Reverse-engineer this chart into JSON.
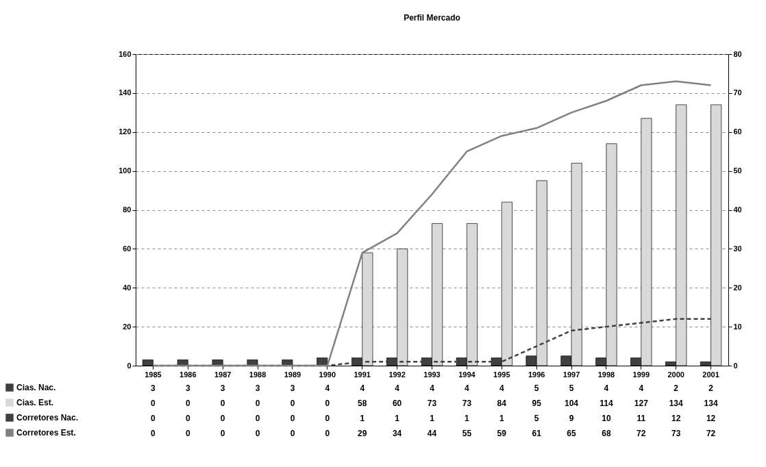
{
  "chart_data": {
    "type": "bar",
    "title": "Perfil Mercado",
    "categories": [
      "1985",
      "1986",
      "1987",
      "1988",
      "1989",
      "1990",
      "1991",
      "1992",
      "1993",
      "1994",
      "1995",
      "1996",
      "1997",
      "1998",
      "1999",
      "2000",
      "2001"
    ],
    "series": [
      {
        "name": "Cias. Nac.",
        "type": "bar",
        "color": "#404040",
        "values": [
          3,
          3,
          3,
          3,
          3,
          4,
          4,
          4,
          4,
          4,
          4,
          5,
          5,
          4,
          4,
          2,
          2
        ]
      },
      {
        "name": "Cias. Est.",
        "type": "bar",
        "color": "#d9d9d9",
        "values": [
          0,
          0,
          0,
          0,
          0,
          0,
          58,
          60,
          73,
          73,
          84,
          95,
          104,
          114,
          127,
          134,
          134
        ]
      },
      {
        "name": "Corretores Nac.",
        "type": "line",
        "axis": "y2",
        "line_style": "dashed",
        "color": "#404040",
        "values": [
          0,
          0,
          0,
          0,
          0,
          0,
          1,
          1,
          1,
          1,
          1,
          5,
          9,
          10,
          11,
          12,
          12
        ]
      },
      {
        "name": "Corretores Est.",
        "type": "line",
        "axis": "y2",
        "line_style": "solid",
        "color": "#808080",
        "values": [
          0,
          0,
          0,
          0,
          0,
          0,
          29,
          34,
          44,
          55,
          59,
          61,
          65,
          68,
          72,
          73,
          72
        ]
      }
    ],
    "ylim": [
      0,
      160
    ],
    "yticks": [
      0,
      20,
      40,
      60,
      80,
      100,
      120,
      140,
      160
    ],
    "y2lim": [
      0,
      80
    ],
    "y2ticks": [
      0,
      10,
      20,
      30,
      40,
      50,
      60,
      70,
      80
    ],
    "grid": "y",
    "legend": "bottom left",
    "data_labels": true
  }
}
